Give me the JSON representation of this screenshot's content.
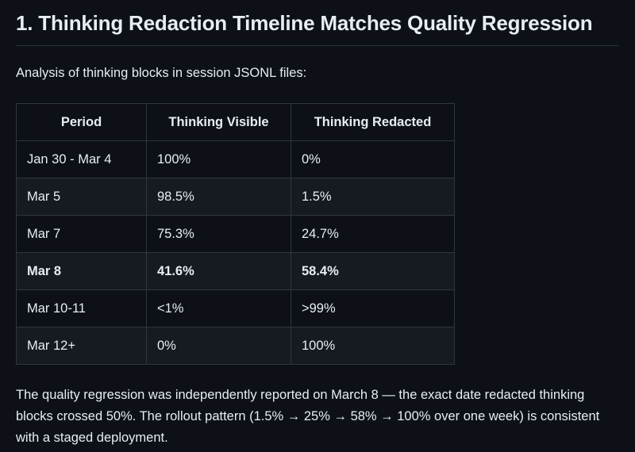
{
  "palette": {
    "bg": "#0d1117",
    "text": "#e6edf3",
    "border": "#30363d",
    "altRow": "#161b22",
    "rule": "#2b313a"
  },
  "heading": "1. Thinking Redaction Timeline Matches Quality Regression",
  "intro": "Analysis of thinking blocks in session JSONL files:",
  "table": {
    "columns": [
      "Period",
      "Thinking Visible",
      "Thinking Redacted"
    ],
    "rows": [
      {
        "period": "Jan 30 - Mar 4",
        "visible": "100%",
        "redacted": "0%",
        "bold": false
      },
      {
        "period": "Mar 5",
        "visible": "98.5%",
        "redacted": "1.5%",
        "bold": false
      },
      {
        "period": "Mar 7",
        "visible": "75.3%",
        "redacted": "24.7%",
        "bold": false
      },
      {
        "period": "Mar 8",
        "visible": "41.6%",
        "redacted": "58.4%",
        "bold": true
      },
      {
        "period": "Mar 10-11",
        "visible": "<1%",
        "redacted": ">99%",
        "bold": false
      },
      {
        "period": "Mar 12+",
        "visible": "0%",
        "redacted": "100%",
        "bold": false
      }
    ]
  },
  "summary": "The quality regression was independently reported on March 8 — the exact date redacted thinking blocks crossed 50%. The rollout pattern (1.5% → 25% → 58% → 100% over one week) is consistent with a staged deployment."
}
